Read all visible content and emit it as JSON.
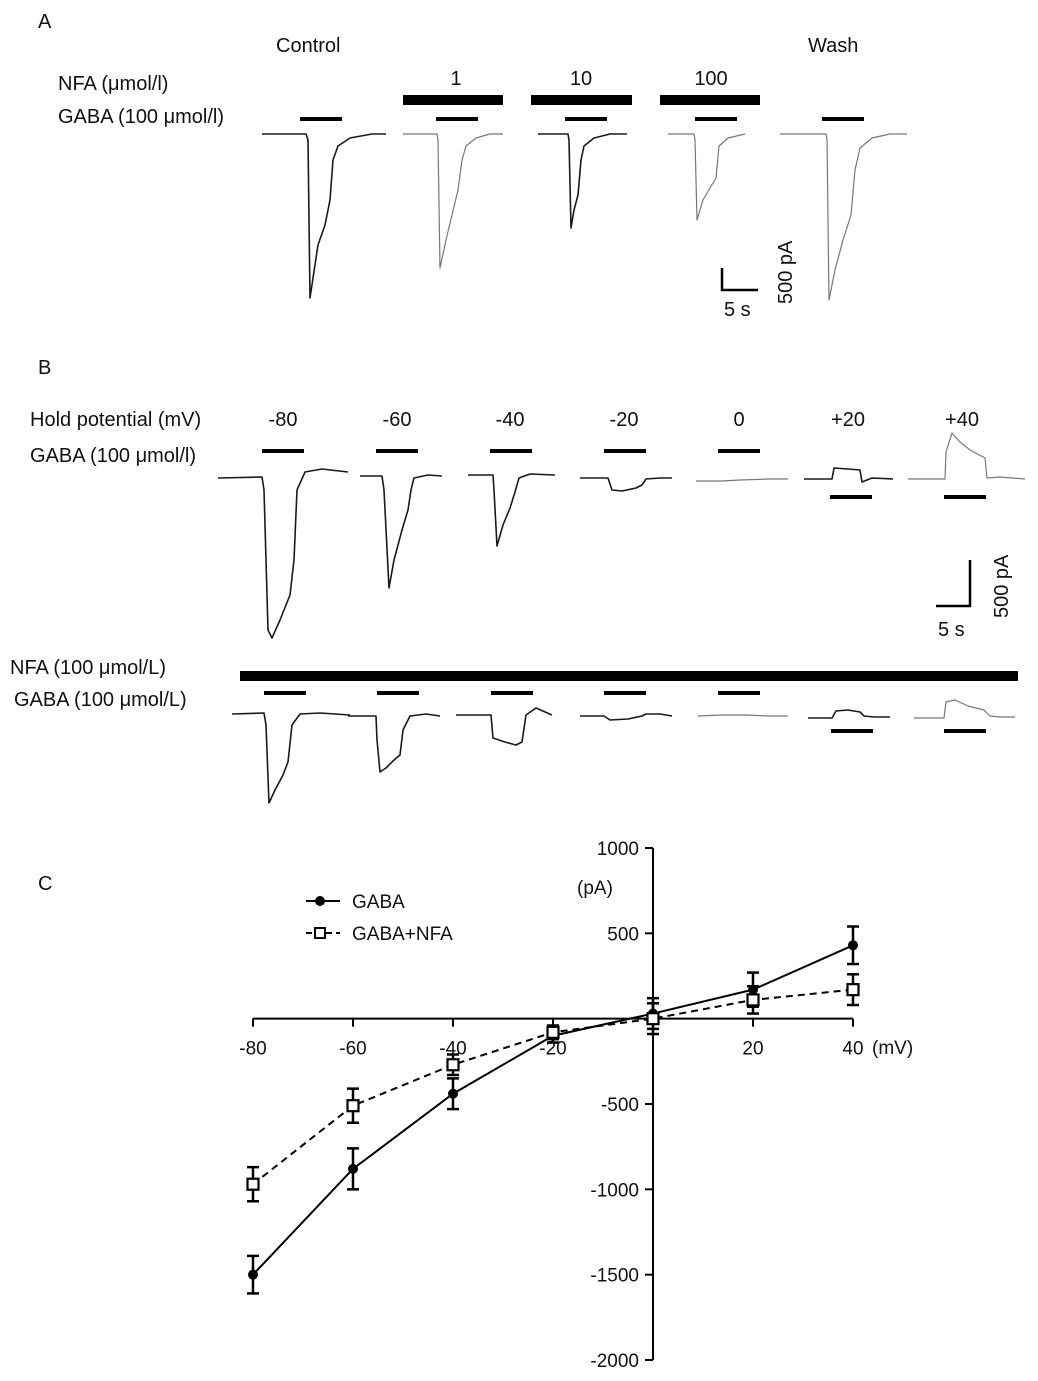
{
  "panel_a": {
    "letter": "A",
    "condition_labels": [
      "Control",
      "Wash"
    ],
    "nfa_label": "NFA (μmol/l)",
    "gaba_label": "GABA (100 μmol/l)",
    "nfa_concentrations": [
      "1",
      "10",
      "100"
    ],
    "scale_time": "5 s",
    "scale_current": "500 pA"
  },
  "panel_b": {
    "letter": "B",
    "hold_label": "Hold potential (mV)",
    "gaba_label_top": "GABA (100 μmol/l)",
    "potentials": [
      "-80",
      "-60",
      "-40",
      "-20",
      "0",
      "+20",
      "+40"
    ],
    "nfa_label": "NFA (100 μmol/L)",
    "gaba_label_bottom": "GABA (100 μmol/L)",
    "scale_time": "5 s",
    "scale_current": "500 pA"
  },
  "panel_c": {
    "letter": "C",
    "y_unit": "(pA)",
    "x_unit": "(mV)"
  },
  "chart_data": {
    "type": "line",
    "x": [
      -80,
      -60,
      -40,
      -20,
      0,
      20,
      40
    ],
    "xlabel": "(mV)",
    "ylabel": "(pA)",
    "xlim": [
      -80,
      40
    ],
    "ylim": [
      -2000,
      1000
    ],
    "x_ticks": [
      "-80",
      "-60",
      "-40",
      "-20",
      "0",
      "20",
      "40"
    ],
    "y_ticks": [
      "1000",
      "500",
      "-500",
      "-1000",
      "-1500",
      "-2000"
    ],
    "legend_position": "top-left",
    "series": [
      {
        "name": "GABA",
        "marker": "filled-circle",
        "line": "solid",
        "values": [
          -1500,
          -880,
          -440,
          -100,
          30,
          170,
          430
        ],
        "errors": [
          110,
          120,
          90,
          40,
          90,
          100,
          110
        ]
      },
      {
        "name": "GABA+NFA",
        "marker": "open-square",
        "line": "dashed",
        "values": [
          -970,
          -510,
          -270,
          -80,
          0,
          110,
          170
        ],
        "errors": [
          100,
          100,
          60,
          40,
          90,
          80,
          90
        ]
      }
    ]
  }
}
